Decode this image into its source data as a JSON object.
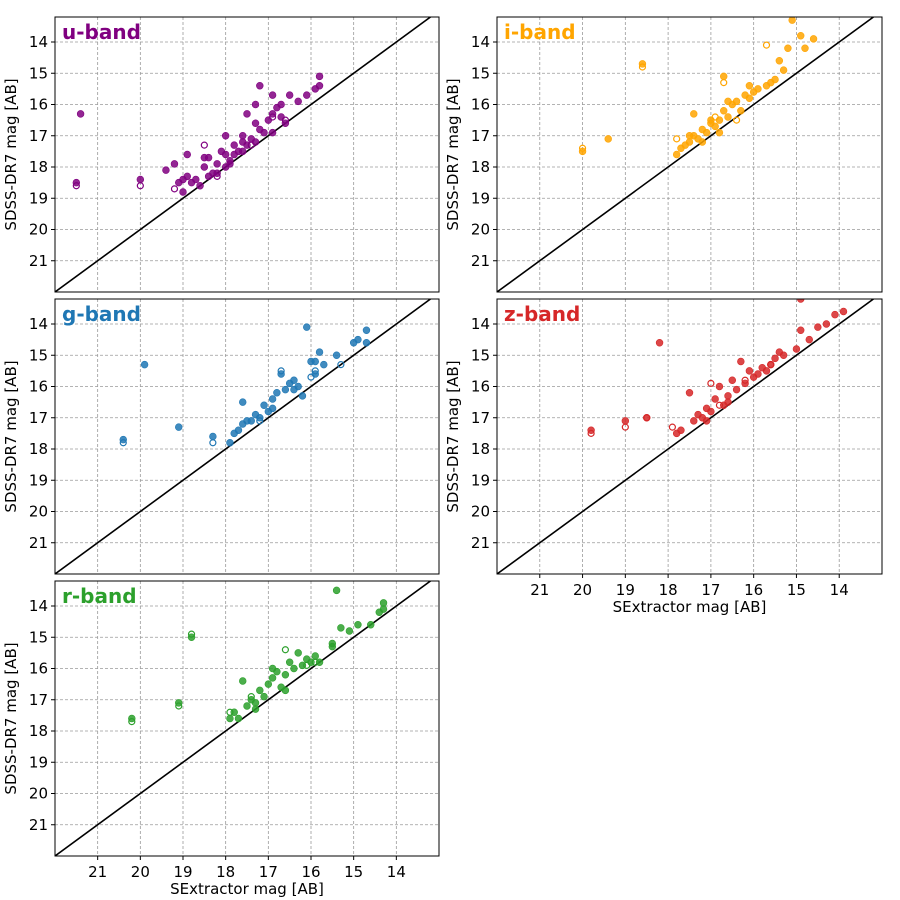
{
  "chart_data": [
    {
      "type": "scatter",
      "title": "u-band",
      "color": "#800080",
      "xlabel": "",
      "ylabel": "SDSS-DR7 mag [AB]",
      "xlim": [
        22,
        13
      ],
      "ylim": [
        22,
        13.2
      ],
      "xticks": [],
      "yticks": [
        14,
        15,
        16,
        17,
        18,
        19,
        20,
        21
      ],
      "grid": true,
      "one_to_one_line": true,
      "filled": [
        [
          21.5,
          18.5
        ],
        [
          21.4,
          16.3
        ],
        [
          20.0,
          18.4
        ],
        [
          19.4,
          18.1
        ],
        [
          19.2,
          17.9
        ],
        [
          19.1,
          18.5
        ],
        [
          19.0,
          18.4
        ],
        [
          19.0,
          18.8
        ],
        [
          18.9,
          18.3
        ],
        [
          18.9,
          17.6
        ],
        [
          18.8,
          18.5
        ],
        [
          18.7,
          18.4
        ],
        [
          18.6,
          18.6
        ],
        [
          18.5,
          18.0
        ],
        [
          18.4,
          18.3
        ],
        [
          18.4,
          17.7
        ],
        [
          18.3,
          18.2
        ],
        [
          18.2,
          17.9
        ],
        [
          18.1,
          17.5
        ],
        [
          18.0,
          18.0
        ],
        [
          18.0,
          17.6
        ],
        [
          17.9,
          17.8
        ],
        [
          17.8,
          17.3
        ],
        [
          17.8,
          17.6
        ],
        [
          17.7,
          17.5
        ],
        [
          17.6,
          17.2
        ],
        [
          17.6,
          17.0
        ],
        [
          17.5,
          17.3
        ],
        [
          17.4,
          17.1
        ],
        [
          17.3,
          17.2
        ],
        [
          17.3,
          16.6
        ],
        [
          17.3,
          16.0
        ],
        [
          17.2,
          16.8
        ],
        [
          17.1,
          16.9
        ],
        [
          17.0,
          16.5
        ],
        [
          16.9,
          16.3
        ],
        [
          16.9,
          16.9
        ],
        [
          16.8,
          16.1
        ],
        [
          16.7,
          16.4
        ],
        [
          16.6,
          16.6
        ],
        [
          16.5,
          15.7
        ],
        [
          16.3,
          15.9
        ],
        [
          16.1,
          15.7
        ],
        [
          15.9,
          15.5
        ],
        [
          15.8,
          15.4
        ],
        [
          15.8,
          15.1
        ],
        [
          17.2,
          15.4
        ],
        [
          16.9,
          15.7
        ],
        [
          16.7,
          16.0
        ],
        [
          17.5,
          16.3
        ],
        [
          18.0,
          17.0
        ],
        [
          18.5,
          17.7
        ],
        [
          18.2,
          18.2
        ],
        [
          17.9,
          17.9
        ],
        [
          17.6,
          17.5
        ]
      ],
      "open": [
        [
          21.5,
          18.6
        ],
        [
          20.0,
          18.6
        ],
        [
          19.2,
          18.7
        ],
        [
          18.5,
          17.3
        ],
        [
          18.2,
          18.3
        ],
        [
          17.4,
          17.3
        ],
        [
          16.9,
          16.4
        ],
        [
          16.6,
          16.5
        ]
      ]
    },
    {
      "type": "scatter",
      "title": "i-band",
      "color": "#ffa500",
      "xlabel": "",
      "ylabel": "SDSS-DR7 mag [AB]",
      "xlim": [
        22,
        13
      ],
      "ylim": [
        22,
        13.2
      ],
      "xticks": [],
      "yticks": [
        14,
        15,
        16,
        17,
        18,
        19,
        20,
        21
      ],
      "grid": true,
      "one_to_one_line": true,
      "filled": [
        [
          20.0,
          17.5
        ],
        [
          19.4,
          17.1
        ],
        [
          18.6,
          14.7
        ],
        [
          17.8,
          17.6
        ],
        [
          17.7,
          17.4
        ],
        [
          17.6,
          17.3
        ],
        [
          17.5,
          17.2
        ],
        [
          17.4,
          16.3
        ],
        [
          17.4,
          17.0
        ],
        [
          17.3,
          17.1
        ],
        [
          17.2,
          16.8
        ],
        [
          17.1,
          16.9
        ],
        [
          17.0,
          16.6
        ],
        [
          16.9,
          16.7
        ],
        [
          16.8,
          16.5
        ],
        [
          16.7,
          15.1
        ],
        [
          16.7,
          16.2
        ],
        [
          16.6,
          16.4
        ],
        [
          16.5,
          16.0
        ],
        [
          16.4,
          15.9
        ],
        [
          16.3,
          16.2
        ],
        [
          16.2,
          15.7
        ],
        [
          16.1,
          15.8
        ],
        [
          16.0,
          15.6
        ],
        [
          15.9,
          15.5
        ],
        [
          15.7,
          15.4
        ],
        [
          15.5,
          15.2
        ],
        [
          15.4,
          14.6
        ],
        [
          15.2,
          14.2
        ],
        [
          15.1,
          13.3
        ],
        [
          14.9,
          13.8
        ],
        [
          14.8,
          14.2
        ],
        [
          14.6,
          13.9
        ],
        [
          15.3,
          14.9
        ],
        [
          15.6,
          15.3
        ],
        [
          16.1,
          15.4
        ],
        [
          16.6,
          15.9
        ],
        [
          17.0,
          16.5
        ],
        [
          17.5,
          17.0
        ],
        [
          17.2,
          17.2
        ],
        [
          16.8,
          16.9
        ]
      ],
      "open": [
        [
          20.0,
          17.4
        ],
        [
          18.6,
          14.8
        ],
        [
          17.8,
          17.1
        ],
        [
          16.9,
          16.4
        ],
        [
          16.7,
          15.3
        ],
        [
          16.4,
          16.5
        ],
        [
          15.7,
          14.1
        ]
      ]
    },
    {
      "type": "scatter",
      "title": "g-band",
      "color": "#1f77b4",
      "xlabel": "",
      "ylabel": "SDSS-DR7 mag [AB]",
      "xlim": [
        22,
        13
      ],
      "ylim": [
        22,
        13.2
      ],
      "xticks": [],
      "yticks": [
        14,
        15,
        16,
        17,
        18,
        19,
        20,
        21
      ],
      "grid": true,
      "one_to_one_line": true,
      "filled": [
        [
          20.4,
          17.7
        ],
        [
          19.9,
          15.3
        ],
        [
          19.1,
          17.3
        ],
        [
          18.3,
          17.6
        ],
        [
          17.9,
          17.8
        ],
        [
          17.8,
          17.5
        ],
        [
          17.7,
          17.4
        ],
        [
          17.6,
          16.5
        ],
        [
          17.6,
          17.2
        ],
        [
          17.5,
          17.1
        ],
        [
          17.3,
          16.9
        ],
        [
          17.2,
          17.0
        ],
        [
          17.1,
          16.6
        ],
        [
          17.0,
          16.8
        ],
        [
          16.9,
          16.4
        ],
        [
          16.8,
          16.2
        ],
        [
          16.7,
          15.6
        ],
        [
          16.6,
          16.1
        ],
        [
          16.5,
          15.9
        ],
        [
          16.4,
          15.8
        ],
        [
          16.3,
          16.0
        ],
        [
          16.2,
          16.3
        ],
        [
          16.1,
          14.1
        ],
        [
          16.0,
          15.2
        ],
        [
          15.9,
          15.6
        ],
        [
          15.8,
          14.9
        ],
        [
          15.7,
          15.3
        ],
        [
          15.4,
          15.0
        ],
        [
          15.0,
          14.6
        ],
        [
          14.9,
          14.5
        ],
        [
          14.7,
          14.2
        ],
        [
          14.7,
          14.6
        ],
        [
          16.4,
          16.1
        ],
        [
          16.9,
          16.7
        ],
        [
          17.4,
          17.1
        ],
        [
          15.9,
          15.2
        ]
      ],
      "open": [
        [
          20.4,
          17.8
        ],
        [
          18.3,
          17.8
        ],
        [
          17.2,
          17.1
        ],
        [
          16.7,
          15.5
        ],
        [
          16.0,
          15.7
        ],
        [
          15.9,
          15.5
        ],
        [
          15.3,
          15.3
        ]
      ]
    },
    {
      "type": "scatter",
      "title": "z-band",
      "color": "#d62728",
      "xlabel": "SExtractor mag [AB]",
      "ylabel": "SDSS-DR7 mag [AB]",
      "xlim": [
        22,
        13
      ],
      "ylim": [
        22,
        13.2
      ],
      "xticks": [
        21,
        20,
        19,
        18,
        17,
        16,
        15,
        14
      ],
      "yticks": [
        14,
        15,
        16,
        17,
        18,
        19,
        20,
        21
      ],
      "grid": true,
      "one_to_one_line": true,
      "filled": [
        [
          19.8,
          17.4
        ],
        [
          19.0,
          17.1
        ],
        [
          18.5,
          17.0
        ],
        [
          18.2,
          14.6
        ],
        [
          17.8,
          17.5
        ],
        [
          17.7,
          17.4
        ],
        [
          17.5,
          16.2
        ],
        [
          17.4,
          17.1
        ],
        [
          17.3,
          16.9
        ],
        [
          17.2,
          17.0
        ],
        [
          17.1,
          16.7
        ],
        [
          17.0,
          16.8
        ],
        [
          16.9,
          16.4
        ],
        [
          16.8,
          16.0
        ],
        [
          16.7,
          16.6
        ],
        [
          16.6,
          16.3
        ],
        [
          16.5,
          15.8
        ],
        [
          16.4,
          16.1
        ],
        [
          16.3,
          15.2
        ],
        [
          16.2,
          15.9
        ],
        [
          16.1,
          15.5
        ],
        [
          16.0,
          15.7
        ],
        [
          15.9,
          15.6
        ],
        [
          15.8,
          15.4
        ],
        [
          15.7,
          15.5
        ],
        [
          15.6,
          15.3
        ],
        [
          15.5,
          15.1
        ],
        [
          15.3,
          15.0
        ],
        [
          15.0,
          14.8
        ],
        [
          14.9,
          14.2
        ],
        [
          14.7,
          14.5
        ],
        [
          14.5,
          14.1
        ],
        [
          14.3,
          14.0
        ],
        [
          14.1,
          13.7
        ],
        [
          13.9,
          13.6
        ],
        [
          14.9,
          13.2
        ],
        [
          15.4,
          14.9
        ],
        [
          16.6,
          16.5
        ],
        [
          17.1,
          17.1
        ]
      ],
      "open": [
        [
          19.8,
          17.5
        ],
        [
          19.0,
          17.3
        ],
        [
          18.5,
          17.0
        ],
        [
          17.9,
          17.3
        ],
        [
          17.0,
          15.9
        ],
        [
          16.8,
          16.6
        ],
        [
          16.2,
          15.8
        ],
        [
          15.6,
          15.3
        ]
      ]
    },
    {
      "type": "scatter",
      "title": "r-band",
      "color": "#2ca02c",
      "xlabel": "SExtractor mag [AB]",
      "ylabel": "SDSS-DR7 mag [AB]",
      "xlim": [
        22,
        13
      ],
      "ylim": [
        22,
        13.2
      ],
      "xticks": [
        21,
        20,
        19,
        18,
        17,
        16,
        15,
        14
      ],
      "yticks": [
        14,
        15,
        16,
        17,
        18,
        19,
        20,
        21
      ],
      "grid": true,
      "one_to_one_line": true,
      "filled": [
        [
          20.2,
          17.6
        ],
        [
          19.1,
          17.1
        ],
        [
          18.8,
          15.0
        ],
        [
          17.9,
          17.6
        ],
        [
          17.8,
          17.4
        ],
        [
          17.7,
          17.6
        ],
        [
          17.6,
          16.4
        ],
        [
          17.5,
          17.2
        ],
        [
          17.4,
          17.0
        ],
        [
          17.3,
          17.1
        ],
        [
          17.2,
          16.7
        ],
        [
          17.1,
          16.9
        ],
        [
          17.0,
          16.5
        ],
        [
          16.9,
          16.3
        ],
        [
          16.8,
          16.1
        ],
        [
          16.7,
          16.6
        ],
        [
          16.6,
          16.2
        ],
        [
          16.5,
          15.8
        ],
        [
          16.4,
          16.0
        ],
        [
          16.3,
          15.5
        ],
        [
          16.2,
          15.9
        ],
        [
          16.1,
          15.7
        ],
        [
          16.0,
          15.8
        ],
        [
          15.9,
          15.6
        ],
        [
          15.8,
          15.8
        ],
        [
          15.5,
          15.3
        ],
        [
          15.4,
          13.5
        ],
        [
          15.3,
          14.7
        ],
        [
          15.1,
          14.8
        ],
        [
          14.9,
          14.6
        ],
        [
          14.6,
          14.6
        ],
        [
          14.4,
          14.2
        ],
        [
          14.3,
          14.1
        ],
        [
          14.3,
          13.9
        ],
        [
          15.5,
          15.2
        ],
        [
          16.9,
          16.0
        ],
        [
          17.3,
          17.3
        ],
        [
          16.6,
          16.7
        ]
      ],
      "open": [
        [
          20.2,
          17.7
        ],
        [
          19.1,
          17.2
        ],
        [
          18.8,
          14.9
        ],
        [
          17.9,
          17.4
        ],
        [
          17.4,
          16.9
        ],
        [
          16.6,
          15.4
        ],
        [
          16.1,
          15.9
        ],
        [
          15.9,
          15.8
        ]
      ]
    }
  ]
}
